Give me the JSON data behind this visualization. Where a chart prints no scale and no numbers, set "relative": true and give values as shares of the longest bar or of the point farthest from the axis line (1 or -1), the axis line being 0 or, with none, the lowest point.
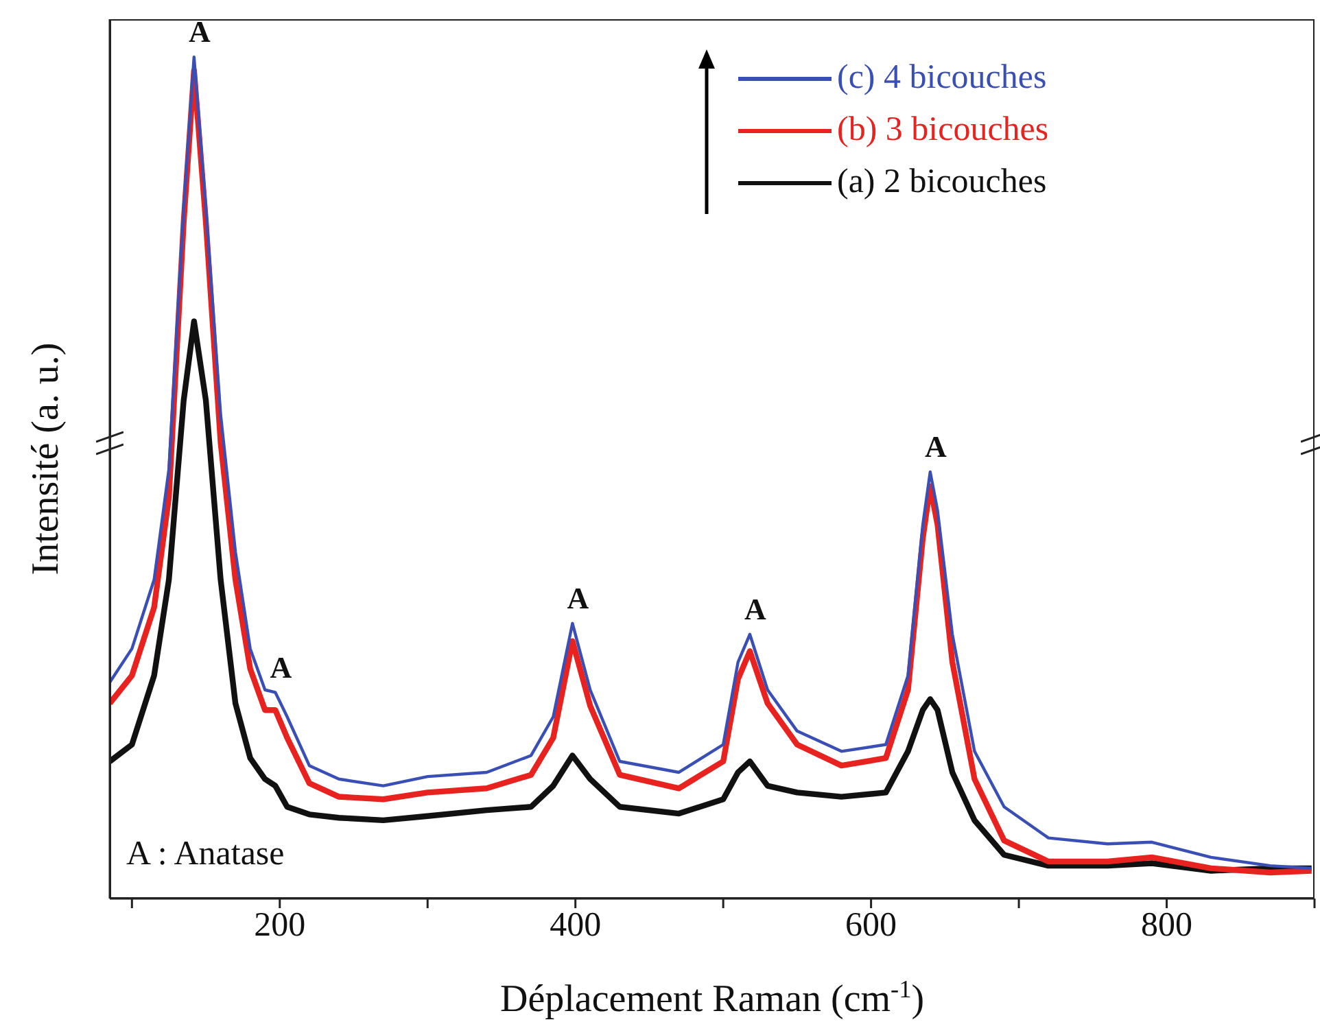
{
  "chart_data": {
    "type": "line",
    "relative": true,
    "xlabel": "Déplacement Raman (cm$^{-1}$)",
    "ylabel": "Intensité (a. u.)",
    "xlim": [
      85,
      900
    ],
    "xticks": [
      {
        "value": 100,
        "label": null
      },
      200,
      {
        "value": 300,
        "label": null
      },
      400,
      {
        "value": 500,
        "label": null
      },
      600,
      {
        "value": 700,
        "label": null
      },
      800,
      {
        "value": 900,
        "label": null
      }
    ],
    "x": [
      85,
      100,
      115,
      125,
      135,
      142,
      150,
      160,
      170,
      180,
      190,
      197,
      205,
      220,
      240,
      270,
      300,
      340,
      370,
      385,
      398,
      410,
      430,
      470,
      500,
      510,
      518,
      530,
      550,
      580,
      610,
      625,
      635,
      640,
      645,
      655,
      670,
      690,
      720,
      760,
      790,
      830,
      870,
      898
    ],
    "series": [
      {
        "name": "(c) 4 bicouches",
        "color": "#3a4fb5",
        "values": [
          0.257,
          0.297,
          0.379,
          0.51,
          0.82,
          1,
          0.82,
          0.575,
          0.412,
          0.297,
          0.248,
          0.245,
          0.216,
          0.158,
          0.142,
          0.134,
          0.145,
          0.15,
          0.17,
          0.216,
          0.327,
          0.248,
          0.163,
          0.15,
          0.183,
          0.281,
          0.314,
          0.248,
          0.199,
          0.175,
          0.183,
          0.265,
          0.444,
          0.507,
          0.461,
          0.314,
          0.175,
          0.109,
          0.072,
          0.065,
          0.067,
          0.049,
          0.039,
          0.036
        ]
      },
      {
        "name": "(b) 3 bicouches",
        "color": "#e8231f",
        "values": [
          0.232,
          0.265,
          0.346,
          0.477,
          0.804,
          0.984,
          0.804,
          0.542,
          0.379,
          0.273,
          0.224,
          0.224,
          0.191,
          0.137,
          0.121,
          0.118,
          0.126,
          0.131,
          0.147,
          0.191,
          0.306,
          0.229,
          0.147,
          0.131,
          0.163,
          0.261,
          0.294,
          0.232,
          0.183,
          0.158,
          0.167,
          0.248,
          0.428,
          0.49,
          0.444,
          0.281,
          0.142,
          0.069,
          0.044,
          0.044,
          0.049,
          0.036,
          0.031,
          0.033
        ]
      },
      {
        "name": "(a) 2 bicouches",
        "color": "#111111",
        "values": [
          0.163,
          0.183,
          0.265,
          0.379,
          0.592,
          0.686,
          0.592,
          0.379,
          0.232,
          0.167,
          0.142,
          0.134,
          0.109,
          0.1,
          0.096,
          0.093,
          0.098,
          0.105,
          0.109,
          0.134,
          0.17,
          0.142,
          0.109,
          0.101,
          0.118,
          0.15,
          0.163,
          0.134,
          0.126,
          0.121,
          0.126,
          0.175,
          0.224,
          0.237,
          0.224,
          0.15,
          0.093,
          0.052,
          0.039,
          0.039,
          0.042,
          0.033,
          0.036,
          0.036
        ]
      }
    ],
    "annotations": [
      {
        "text": "A",
        "x": 142,
        "y": 1
      },
      {
        "text": "A",
        "x": 197,
        "y": 0.245
      },
      {
        "text": "A",
        "x": 398,
        "y": 0.327
      },
      {
        "text": "A",
        "x": 518,
        "y": 0.314
      },
      {
        "text": "A",
        "x": 640,
        "y": 0.507
      },
      "A : Anatase"
    ],
    "legend": "top right",
    "marker": "none",
    "line_style": "solid",
    "grid": false
  }
}
